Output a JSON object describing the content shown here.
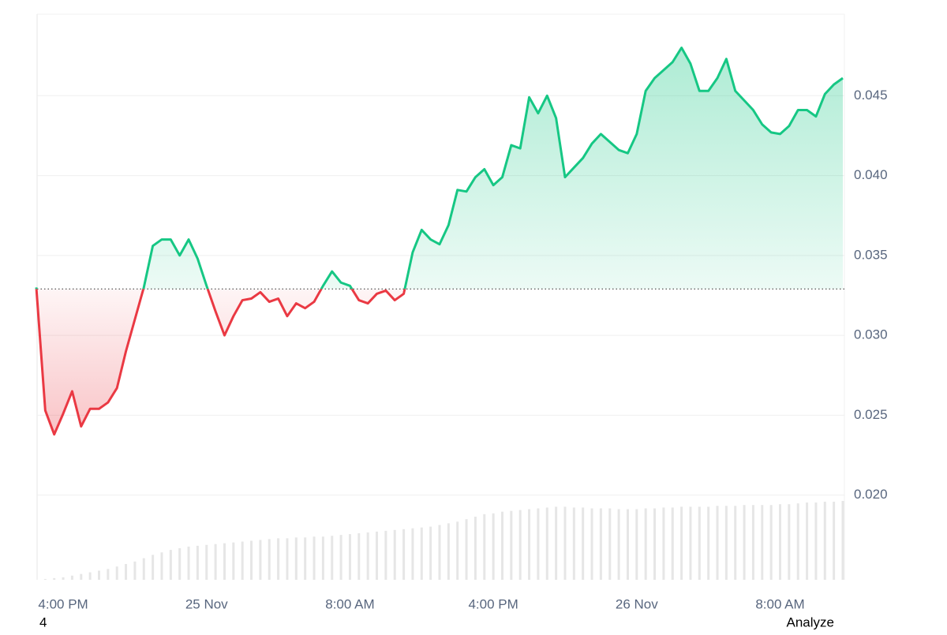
{
  "chart_data": {
    "type": "line",
    "categories": [
      null,
      null,
      null,
      "4:00 PM",
      null,
      null,
      null,
      null,
      null,
      null,
      null,
      null,
      null,
      null,
      null,
      null,
      null,
      null,
      null,
      "25 Nov",
      null,
      null,
      null,
      null,
      null,
      null,
      null,
      null,
      null,
      null,
      null,
      null,
      null,
      null,
      null,
      "8:00 AM",
      null,
      null,
      null,
      null,
      null,
      null,
      null,
      null,
      null,
      null,
      null,
      null,
      null,
      null,
      null,
      "4:00 PM",
      null,
      null,
      null,
      null,
      null,
      null,
      null,
      null,
      null,
      null,
      null,
      null,
      null,
      null,
      null,
      "26 Nov",
      null,
      null,
      null,
      null,
      null,
      null,
      null,
      null,
      null,
      null,
      null,
      null,
      null,
      null,
      null,
      "8:00 AM",
      null,
      null,
      null,
      null,
      null,
      null,
      null
    ],
    "values": [
      0.033,
      0.0253,
      0.0238,
      0.0251,
      0.0265,
      0.0243,
      0.0254,
      0.0254,
      0.0258,
      0.0267,
      0.029,
      0.031,
      0.033,
      0.0356,
      0.036,
      0.036,
      0.035,
      0.036,
      0.0348,
      0.0331,
      0.0315,
      0.03,
      0.0312,
      0.0322,
      0.0323,
      0.0327,
      0.0321,
      0.0323,
      0.0312,
      0.032,
      0.0317,
      0.0321,
      0.0331,
      0.034,
      0.0333,
      0.0331,
      0.0322,
      0.032,
      0.0326,
      0.0328,
      0.0322,
      0.0326,
      0.0352,
      0.0366,
      0.036,
      0.0357,
      0.0369,
      0.0391,
      0.039,
      0.0399,
      0.0404,
      0.0394,
      0.0399,
      0.0419,
      0.0417,
      0.0449,
      0.0439,
      0.045,
      0.0436,
      0.0399,
      0.0405,
      0.0411,
      0.042,
      0.0426,
      0.0421,
      0.0416,
      0.0414,
      0.0426,
      0.0453,
      0.0461,
      0.0466,
      0.0471,
      0.048,
      0.047,
      0.0453,
      0.0453,
      0.0461,
      0.0473,
      0.0453,
      0.0447,
      0.0441,
      0.0432,
      0.0427,
      0.0426,
      0.0431,
      0.0441,
      0.0441,
      0.0437,
      0.0451,
      0.0457,
      0.0461
    ],
    "baseline": 0.0329,
    "colors": {
      "up": "#16c784",
      "down": "#ea3943"
    },
    "ylim": [
      0.0147,
      0.0501
    ],
    "yticks": [
      {
        "value": 0.02,
        "label": "0.020"
      },
      0.025,
      {
        "value": 0.03,
        "label": "0.030"
      },
      0.035,
      {
        "value": 0.04,
        "label": "0.040"
      },
      0.045
    ],
    "grid": true,
    "volume": {
      "color": "#e6e6e6",
      "values": [
        0,
        1,
        2,
        3,
        5,
        7,
        9,
        11,
        13,
        16,
        19,
        22,
        26,
        30,
        33,
        36,
        38,
        40,
        41,
        42,
        43,
        44,
        45,
        46,
        47,
        48,
        49,
        50,
        50,
        51,
        51,
        52,
        52,
        53,
        54,
        55,
        56,
        57,
        58,
        59,
        60,
        61,
        62,
        63,
        64,
        66,
        68,
        70,
        73,
        76,
        79,
        80,
        82,
        83,
        84,
        85,
        86,
        87,
        88,
        88,
        87,
        87,
        86,
        86,
        86,
        85,
        85,
        85,
        86,
        86,
        87,
        87,
        88,
        88,
        88,
        88,
        89,
        89,
        89,
        90,
        90,
        90,
        90,
        91,
        91,
        92,
        93,
        93,
        94,
        94,
        95
      ]
    }
  },
  "footer": {
    "left": "4",
    "right": "Analyze"
  }
}
